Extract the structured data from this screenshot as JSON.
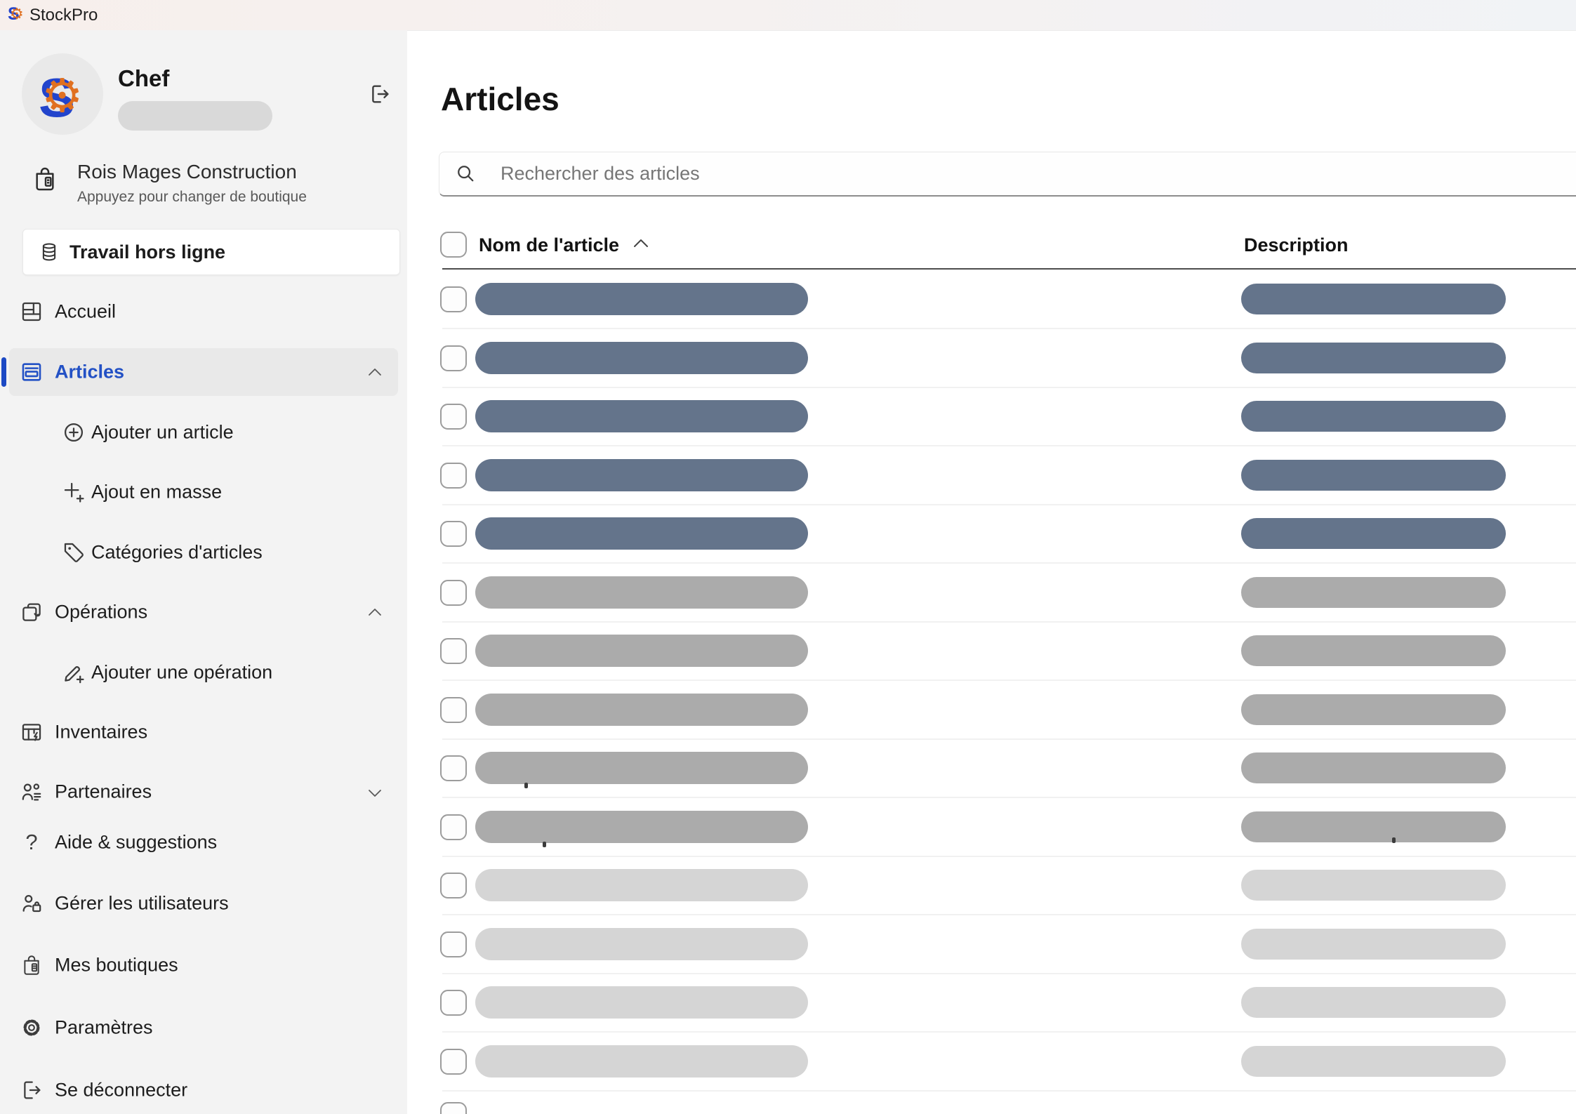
{
  "topbar": {
    "app_name": "StockPro"
  },
  "sidebar": {
    "user": {
      "name": "Chef"
    },
    "store": {
      "name": "Rois Mages Construction",
      "subtitle": "Appuyez pour changer de boutique"
    },
    "offline_button": {
      "label": "Travail hors ligne"
    },
    "nav": [
      {
        "id": "accueil",
        "label": "Accueil",
        "icon": "home-grid-icon",
        "level": 0
      },
      {
        "id": "articles",
        "label": "Articles",
        "icon": "articles-icon",
        "level": 0,
        "active": true,
        "chevron": "up"
      },
      {
        "id": "ajouter-article",
        "label": "Ajouter un article",
        "icon": "circle-plus-icon",
        "level": 1
      },
      {
        "id": "ajout-masse",
        "label": "Ajout en masse",
        "icon": "bulk-add-icon",
        "level": 1
      },
      {
        "id": "categories",
        "label": "Catégories d'articles",
        "icon": "tag-icon",
        "level": 1
      },
      {
        "id": "operations",
        "label": "Opérations",
        "icon": "operations-icon",
        "level": 0,
        "chevron": "up"
      },
      {
        "id": "ajouter-operation",
        "label": "Ajouter une opération",
        "icon": "add-operation-icon",
        "level": 1
      },
      {
        "id": "inventaires",
        "label": "Inventaires",
        "icon": "inventories-icon",
        "level": 0
      },
      {
        "id": "partenaires",
        "label": "Partenaires",
        "icon": "partners-icon",
        "level": 0,
        "chevron": "down"
      },
      {
        "id": "aide",
        "label": "Aide & suggestions",
        "icon": "help-icon",
        "level": 0
      },
      {
        "id": "utilisateurs",
        "label": "Gérer les utilisateurs",
        "icon": "manage-users-icon",
        "level": 0
      },
      {
        "id": "boutiques",
        "label": "Mes boutiques",
        "icon": "shop-bag-icon",
        "level": 0
      },
      {
        "id": "parametres",
        "label": "Paramètres",
        "icon": "gear-icon",
        "level": 0
      },
      {
        "id": "deconnecter",
        "label": "Se déconnecter",
        "icon": "logout-icon",
        "level": 0
      }
    ]
  },
  "main": {
    "title": "Articles",
    "search": {
      "placeholder": "Rechercher des articles"
    },
    "table": {
      "columns": [
        {
          "label": "Nom de l'article",
          "sort": "asc"
        },
        {
          "label": "Description",
          "sort": null
        }
      ],
      "skeleton_rows": [
        {
          "shade": "blue"
        },
        {
          "shade": "blue"
        },
        {
          "shade": "blue"
        },
        {
          "shade": "blue"
        },
        {
          "shade": "blue"
        },
        {
          "shade": "medium"
        },
        {
          "shade": "medium"
        },
        {
          "shade": "medium"
        },
        {
          "shade": "medium"
        },
        {
          "shade": "medium"
        },
        {
          "shade": "light"
        },
        {
          "shade": "light"
        },
        {
          "shade": "light"
        },
        {
          "shade": "light"
        }
      ],
      "partial_row_visible": true
    }
  },
  "colors": {
    "accent_blue": "#1d4ac4",
    "active_text_blue": "#2351c5",
    "skeleton_blue": "#64748b",
    "skeleton_medium": "#ababab",
    "skeleton_light": "#d5d5d5",
    "logo_orange": "#e07020",
    "logo_blue": "#2244cc"
  }
}
